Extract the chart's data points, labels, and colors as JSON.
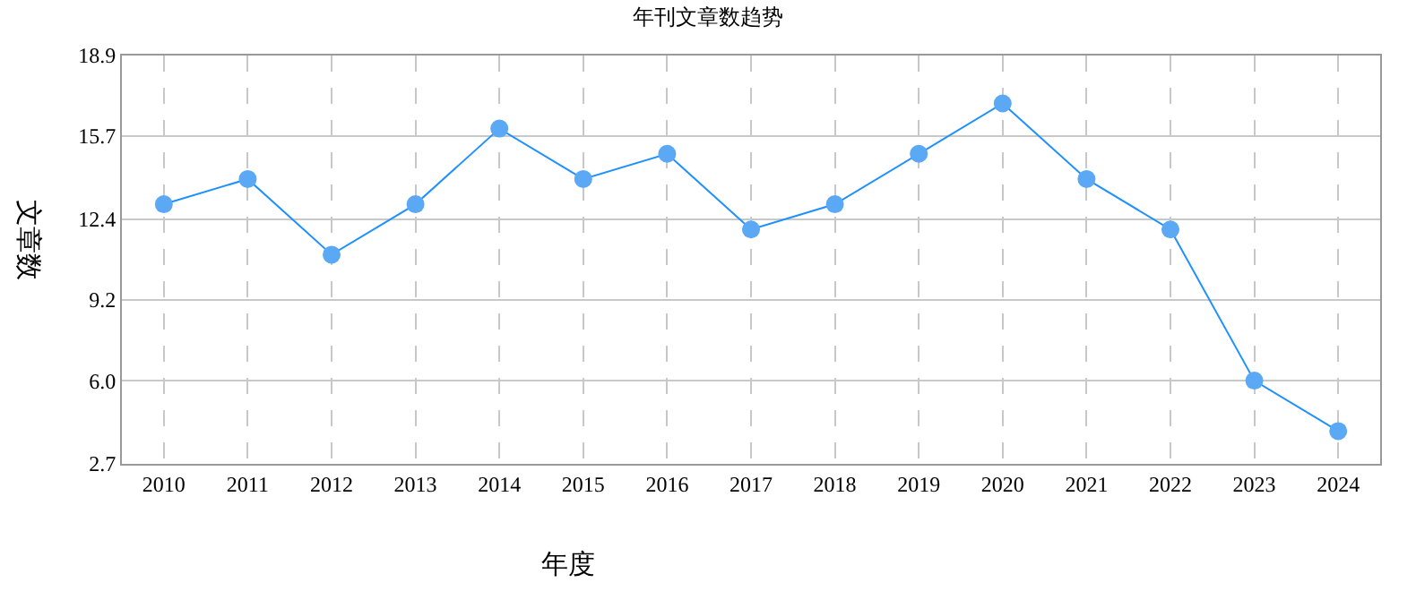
{
  "chart_data": {
    "type": "line",
    "title": "年刊文章数趋势",
    "xlabel": "年度",
    "ylabel": "文章数",
    "categories": [
      "2010",
      "2011",
      "2012",
      "2013",
      "2014",
      "2015",
      "2016",
      "2017",
      "2018",
      "2019",
      "2020",
      "2021",
      "2022",
      "2023",
      "2024"
    ],
    "series": [
      {
        "color": "#1e90ff",
        "values": [
          13,
          14,
          11,
          13,
          16,
          14,
          15,
          12,
          13,
          15,
          17,
          14,
          12,
          6,
          4
        ]
      }
    ],
    "ylim": [
      2.7,
      18.9
    ],
    "yticks": [
      2.7,
      {
        "value": 6,
        "label": "6.0"
      },
      9.2,
      12.4,
      15.7,
      18.9
    ],
    "grid": true,
    "marker": "circle",
    "line_style": "solid",
    "legend": false
  }
}
